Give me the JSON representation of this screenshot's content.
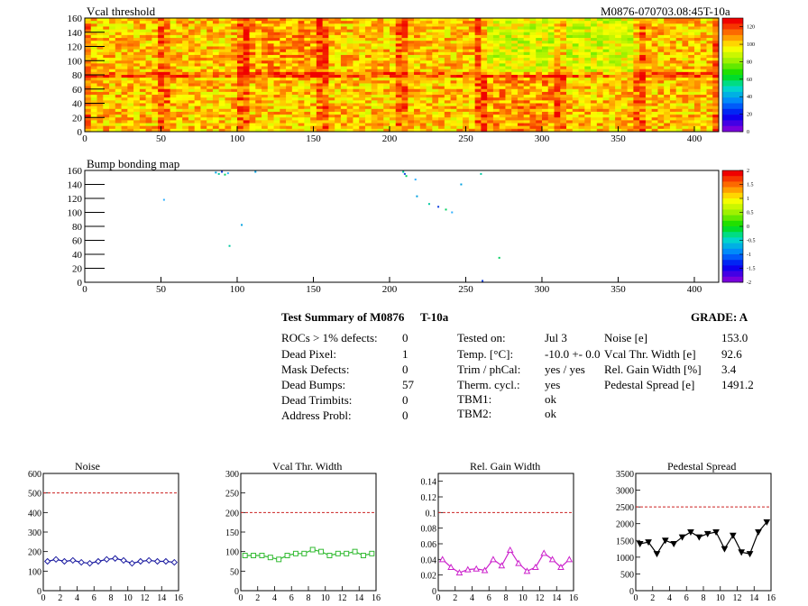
{
  "header": {
    "map_title": "Vcal threshold",
    "module_id": "M0876-070703.08:45T-10a",
    "bump_title": "Bump bonding map"
  },
  "map_axes": {
    "x_ticks": [
      "0",
      "50",
      "100",
      "150",
      "200",
      "250",
      "300",
      "350",
      "400"
    ],
    "y_ticks": [
      "0",
      "20",
      "40",
      "60",
      "80",
      "100",
      "120",
      "140",
      "160"
    ],
    "vcal_scale": [
      "120",
      "100",
      "80",
      "60",
      "40",
      "20",
      "0"
    ],
    "bump_scale": [
      "2",
      "1.5",
      "1",
      "0.5",
      "0",
      "-0.5",
      "-1",
      "-1.5",
      "-2"
    ]
  },
  "summary": {
    "title": "Test Summary of M0876",
    "test_id": "T-10a",
    "grade": "GRADE:  A",
    "col1": [
      {
        "label": "ROCs > 1% defects:",
        "value": "0"
      },
      {
        "label": "Dead Pixel:",
        "value": "1"
      },
      {
        "label": "Mask Defects:",
        "value": "0"
      },
      {
        "label": "Dead Bumps:",
        "value": "57"
      },
      {
        "label": "Dead Trimbits:",
        "value": "0"
      },
      {
        "label": "Address Probl:",
        "value": "0"
      }
    ],
    "col2": [
      {
        "label": "Tested on:",
        "value": "Jul 3"
      },
      {
        "label": "Temp. [°C]:",
        "value": "-10.0 +- 0.0"
      },
      {
        "label": "Trim / phCal:",
        "value": "yes / yes"
      },
      {
        "label": "Therm. cycl.:",
        "value": "yes"
      },
      {
        "label": "TBM1:",
        "value": "ok"
      },
      {
        "label": "TBM2:",
        "value": "ok"
      }
    ],
    "col3": [
      {
        "label": "Noise [e]",
        "value": "153.0"
      },
      {
        "label": "Vcal Thr. Width [e]",
        "value": "92.6"
      },
      {
        "label": "Rel. Gain Width [%]",
        "value": "3.4"
      },
      {
        "label": "Pedestal Spread [e]",
        "value": "1491.2"
      }
    ]
  },
  "colors": {
    "noise": "#1a1aa0",
    "vcal": "#33bb33",
    "gain": "#cc22cc",
    "pedestal": "#000000",
    "limit": "#cc2222"
  },
  "chart_data": [
    {
      "type": "heatmap",
      "title": "Vcal threshold",
      "xlim": [
        0,
        416
      ],
      "ylim": [
        0,
        160
      ],
      "z_range": [
        0,
        130
      ],
      "description_values": "16 ROC blocks (8 x 2), mean about 100-110"
    },
    {
      "type": "scatter",
      "title": "Bump bonding map",
      "xlim": [
        0,
        416
      ],
      "ylim": [
        0,
        160
      ],
      "z_range": [
        -2,
        2
      ],
      "points": [
        [
          86,
          157
        ],
        [
          88,
          155
        ],
        [
          90,
          158
        ],
        [
          92,
          154
        ],
        [
          94,
          156
        ],
        [
          112,
          158
        ],
        [
          209,
          158
        ],
        [
          210,
          155
        ],
        [
          211,
          152
        ],
        [
          217,
          147
        ],
        [
          218,
          123
        ],
        [
          226,
          112
        ],
        [
          232,
          108
        ],
        [
          237,
          104
        ],
        [
          241,
          100
        ],
        [
          247,
          140
        ],
        [
          260,
          155
        ],
        [
          261,
          2
        ],
        [
          272,
          35
        ],
        [
          52,
          118
        ],
        [
          103,
          82
        ],
        [
          95,
          52
        ]
      ]
    },
    {
      "type": "line",
      "title": "Noise",
      "x": [
        0,
        1,
        2,
        3,
        4,
        5,
        6,
        7,
        8,
        9,
        10,
        11,
        12,
        13,
        14,
        15
      ],
      "values": [
        150,
        160,
        150,
        155,
        145,
        140,
        150,
        160,
        165,
        155,
        140,
        150,
        155,
        150,
        150,
        145
      ],
      "limit": 500,
      "xlim": [
        0,
        16
      ],
      "ylim": [
        0,
        600
      ],
      "x_ticks": [
        "0",
        "2",
        "4",
        "6",
        "8",
        "10",
        "12",
        "14",
        "16"
      ],
      "y_ticks": [
        "0",
        "100",
        "200",
        "300",
        "400",
        "500",
        "600"
      ]
    },
    {
      "type": "line",
      "title": "Vcal Thr. Width",
      "x": [
        0,
        1,
        2,
        3,
        4,
        5,
        6,
        7,
        8,
        9,
        10,
        11,
        12,
        13,
        14,
        15
      ],
      "values": [
        90,
        90,
        90,
        85,
        80,
        90,
        95,
        95,
        105,
        100,
        90,
        95,
        95,
        100,
        90,
        95
      ],
      "limit": 200,
      "xlim": [
        0,
        16
      ],
      "ylim": [
        0,
        300
      ],
      "x_ticks": [
        "0",
        "2",
        "4",
        "6",
        "8",
        "10",
        "12",
        "14",
        "16"
      ],
      "y_ticks": [
        "0",
        "50",
        "100",
        "150",
        "200",
        "250",
        "300"
      ]
    },
    {
      "type": "line",
      "title": "Rel. Gain Width",
      "x": [
        0,
        1,
        2,
        3,
        4,
        5,
        6,
        7,
        8,
        9,
        10,
        11,
        12,
        13,
        14,
        15
      ],
      "values": [
        0.04,
        0.03,
        0.023,
        0.027,
        0.028,
        0.026,
        0.04,
        0.032,
        0.052,
        0.035,
        0.025,
        0.03,
        0.048,
        0.04,
        0.03,
        0.04
      ],
      "limit": 0.1,
      "xlim": [
        0,
        16
      ],
      "ylim": [
        0,
        0.15
      ],
      "x_ticks": [
        "0",
        "2",
        "4",
        "6",
        "8",
        "10",
        "12",
        "14",
        "16"
      ],
      "y_ticks": [
        "0",
        "0.02",
        "0.04",
        "0.06",
        "0.08",
        "0.1",
        "0.12",
        "0.14"
      ]
    },
    {
      "type": "line",
      "title": "Pedestal Spread",
      "x": [
        0,
        1,
        2,
        3,
        4,
        5,
        6,
        7,
        8,
        9,
        10,
        11,
        12,
        13,
        14,
        15
      ],
      "values": [
        1400,
        1450,
        1100,
        1500,
        1400,
        1600,
        1750,
        1600,
        1700,
        1750,
        1250,
        1650,
        1150,
        1100,
        1750,
        2050
      ],
      "limit": 2500,
      "xlim": [
        0,
        16
      ],
      "ylim": [
        0,
        3500
      ],
      "x_ticks": [
        "0",
        "2",
        "4",
        "6",
        "8",
        "10",
        "12",
        "14",
        "16"
      ],
      "y_ticks": [
        "0",
        "500",
        "1000",
        "1500",
        "2000",
        "2500",
        "3000",
        "3500"
      ]
    }
  ]
}
